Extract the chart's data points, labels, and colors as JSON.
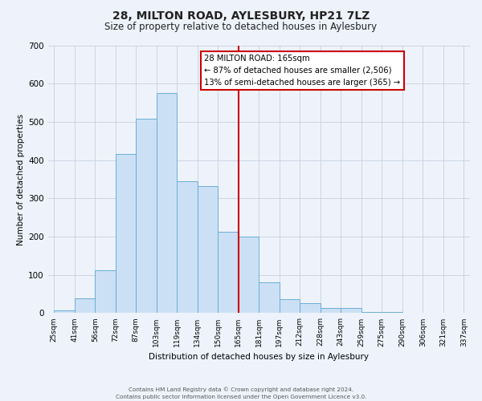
{
  "title": "28, MILTON ROAD, AYLESBURY, HP21 7LZ",
  "subtitle": "Size of property relative to detached houses in Aylesbury",
  "xlabel": "Distribution of detached houses by size in Aylesbury",
  "ylabel": "Number of detached properties",
  "bar_values": [
    8,
    38,
    113,
    415,
    508,
    575,
    345,
    333,
    212,
    201,
    80,
    37,
    26,
    13,
    13,
    4,
    2,
    0,
    0,
    0,
    0
  ],
  "all_labels": [
    "25sqm",
    "41sqm",
    "56sqm",
    "72sqm",
    "87sqm",
    "103sqm",
    "119sqm",
    "134sqm",
    "150sqm",
    "165sqm",
    "181sqm",
    "197sqm",
    "212sqm",
    "228sqm",
    "243sqm",
    "259sqm",
    "275sqm",
    "290sqm",
    "306sqm",
    "321sqm",
    "337sqm"
  ],
  "bar_color": "#cce0f5",
  "bar_edge_color": "#6aaed6",
  "vline_color": "#cc0000",
  "ylim": [
    0,
    700
  ],
  "yticks": [
    0,
    100,
    200,
    300,
    400,
    500,
    600,
    700
  ],
  "annotation_title": "28 MILTON ROAD: 165sqm",
  "annotation_line1": "← 87% of detached houses are smaller (2,506)",
  "annotation_line2": "13% of semi-detached houses are larger (365) →",
  "annotation_box_color": "#ffffff",
  "annotation_box_edge": "#cc0000",
  "footer1": "Contains HM Land Registry data © Crown copyright and database right 2024.",
  "footer2": "Contains public sector information licensed under the Open Government Licence v3.0.",
  "bg_color": "#eef3fb",
  "grid_color": "#c5d0e0"
}
